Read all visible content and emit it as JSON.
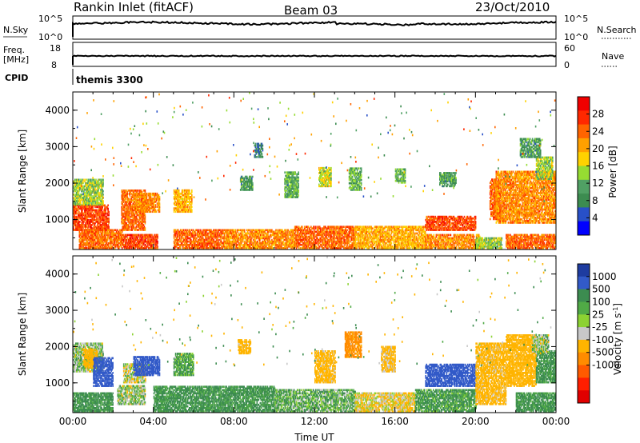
{
  "header": {
    "station": "Rankin Inlet (fitACF)",
    "beam": "Beam 03",
    "date": "23/Oct/2010"
  },
  "top_panels": {
    "nsky_label": "N.Sky",
    "nsky_ticks": [
      "10^5",
      "10^0"
    ],
    "nsearch_label": "N.Search",
    "nsearch_ticks": [
      "10^5",
      "10^0"
    ],
    "freq_label": "Freq.",
    "freq_unit": "[MHz]",
    "freq_ticks": [
      "18",
      "8"
    ],
    "nave_label": "Nave",
    "nave_ticks": [
      "60",
      "0"
    ],
    "cpid_label": "CPID",
    "cpid_value": "themis 3300"
  },
  "colors": {
    "power_scale": [
      "#0000ff",
      "#2850c8",
      "#3c8c50",
      "#50a064",
      "#96dc32",
      "#ffd200",
      "#ffa000",
      "#ff6400",
      "#ff2800",
      "#f00000"
    ],
    "velocity_scale": [
      "#1e3ca0",
      "#325ac8",
      "#3c8c50",
      "#50aa46",
      "#8cd232",
      "#c8c8c8",
      "#ffb400",
      "#ff8c00",
      "#ff5a00",
      "#ff1e00",
      "#e10000"
    ]
  },
  "chart_data": [
    {
      "type": "heatmap",
      "panel": "power",
      "ylabel": "Slant Range [km]",
      "yticks": [
        "1000",
        "2000",
        "3000",
        "4000"
      ],
      "ylim": [
        180,
        4500
      ],
      "xlim": [
        0,
        24
      ],
      "colorbar_label": "Power [dB]",
      "colorbar_ticks": [
        "4",
        "8",
        "12",
        "16",
        "20",
        "24",
        "28"
      ],
      "colorbar_range": [
        0,
        32
      ],
      "regions": [
        {
          "t": [
            0.0,
            1.8
          ],
          "r": [
            700,
            1400
          ],
          "v": 26
        },
        {
          "t": [
            0.0,
            1.5
          ],
          "r": [
            1400,
            2100
          ],
          "v": 14
        },
        {
          "t": [
            0.3,
            2.5
          ],
          "r": [
            200,
            700
          ],
          "v": 24
        },
        {
          "t": [
            2.4,
            3.6
          ],
          "r": [
            700,
            1800
          ],
          "v": 24
        },
        {
          "t": [
            2.5,
            4.2
          ],
          "r": [
            200,
            600
          ],
          "v": 26
        },
        {
          "t": [
            3.0,
            4.3
          ],
          "r": [
            1200,
            1700
          ],
          "v": 22
        },
        {
          "t": [
            5.0,
            5.9
          ],
          "r": [
            1200,
            1800
          ],
          "v": 20
        },
        {
          "t": [
            5.0,
            7.5
          ],
          "r": [
            200,
            700
          ],
          "v": 24
        },
        {
          "t": [
            7.5,
            11.0
          ],
          "r": [
            200,
            700
          ],
          "v": 22
        },
        {
          "t": [
            8.3,
            8.9
          ],
          "r": [
            1800,
            2200
          ],
          "v": 10
        },
        {
          "t": [
            9.0,
            9.4
          ],
          "r": [
            2700,
            3100
          ],
          "v": 8
        },
        {
          "t": [
            10.5,
            11.2
          ],
          "r": [
            1600,
            2300
          ],
          "v": 12
        },
        {
          "t": [
            11.0,
            14.0
          ],
          "r": [
            200,
            800
          ],
          "v": 24
        },
        {
          "t": [
            12.2,
            12.8
          ],
          "r": [
            1900,
            2400
          ],
          "v": 16
        },
        {
          "t": [
            13.7,
            14.3
          ],
          "r": [
            1800,
            2400
          ],
          "v": 12
        },
        {
          "t": [
            14.0,
            17.5
          ],
          "r": [
            200,
            800
          ],
          "v": 20
        },
        {
          "t": [
            16.0,
            16.5
          ],
          "r": [
            2000,
            2400
          ],
          "v": 12
        },
        {
          "t": [
            17.5,
            20.2
          ],
          "r": [
            200,
            600
          ],
          "v": 22
        },
        {
          "t": [
            17.5,
            20.0
          ],
          "r": [
            700,
            1100
          ],
          "v": 26
        },
        {
          "t": [
            18.2,
            19.0
          ],
          "r": [
            1900,
            2300
          ],
          "v": 10
        },
        {
          "t": [
            20.0,
            21.3
          ],
          "r": [
            200,
            500
          ],
          "v": 14
        },
        {
          "t": [
            20.7,
            21.2
          ],
          "r": [
            1000,
            2100
          ],
          "v": 24
        },
        {
          "t": [
            21.0,
            24.0
          ],
          "r": [
            900,
            2300
          ],
          "v": 22
        },
        {
          "t": [
            21.5,
            24.0
          ],
          "r": [
            200,
            600
          ],
          "v": 24
        },
        {
          "t": [
            23.0,
            23.8
          ],
          "r": [
            2100,
            2700
          ],
          "v": 14
        },
        {
          "t": [
            22.2,
            23.2
          ],
          "r": [
            2700,
            3200
          ],
          "v": 10
        }
      ]
    },
    {
      "type": "heatmap",
      "panel": "velocity",
      "xlabel": "Time UT",
      "ylabel": "Slant Range [km]",
      "xticks": [
        "00:00",
        "04:00",
        "08:00",
        "12:00",
        "16:00",
        "20:00",
        "00:00"
      ],
      "yticks": [
        "1000",
        "2000",
        "3000",
        "4000"
      ],
      "ylim": [
        180,
        4500
      ],
      "xlim": [
        0,
        24
      ],
      "colorbar_label": "Velocity [m s^-1]",
      "colorbar_ticks": [
        "1000",
        "500",
        "100",
        "25",
        "-25",
        "-100",
        "-500",
        "-1000"
      ],
      "regions": [
        {
          "t": [
            0.0,
            1.5
          ],
          "r": [
            1300,
            2100
          ],
          "v": 0
        },
        {
          "t": [
            0.5,
            1.2
          ],
          "r": [
            1400,
            1900
          ],
          "v": -300
        },
        {
          "t": [
            1.0,
            2.0
          ],
          "r": [
            900,
            1700
          ],
          "v": 700
        },
        {
          "t": [
            0.0,
            2.0
          ],
          "r": [
            200,
            700
          ],
          "v": 150
        },
        {
          "t": [
            2.2,
            3.6
          ],
          "r": [
            400,
            900
          ],
          "v": 0
        },
        {
          "t": [
            2.5,
            3.6
          ],
          "r": [
            1000,
            1500
          ],
          "v": -60
        },
        {
          "t": [
            3.0,
            4.3
          ],
          "r": [
            1200,
            1700
          ],
          "v": 700
        },
        {
          "t": [
            4.0,
            10.0
          ],
          "r": [
            200,
            900
          ],
          "v": 150
        },
        {
          "t": [
            5.0,
            6.0
          ],
          "r": [
            1200,
            1800
          ],
          "v": 100
        },
        {
          "t": [
            8.2,
            8.8
          ],
          "r": [
            1800,
            2200
          ],
          "v": -200
        },
        {
          "t": [
            10.0,
            14.0
          ],
          "r": [
            200,
            800
          ],
          "v": 60
        },
        {
          "t": [
            12.0,
            13.0
          ],
          "r": [
            1000,
            1900
          ],
          "v": -200
        },
        {
          "t": [
            13.5,
            14.3
          ],
          "r": [
            1700,
            2400
          ],
          "v": -600
        },
        {
          "t": [
            14.0,
            17.0
          ],
          "r": [
            200,
            700
          ],
          "v": -100
        },
        {
          "t": [
            15.3,
            16.0
          ],
          "r": [
            1300,
            2000
          ],
          "v": -150
        },
        {
          "t": [
            17.0,
            20.0
          ],
          "r": [
            200,
            800
          ],
          "v": 120
        },
        {
          "t": [
            17.5,
            20.0
          ],
          "r": [
            900,
            1500
          ],
          "v": 700
        },
        {
          "t": [
            20.0,
            21.5
          ],
          "r": [
            400,
            2100
          ],
          "v": -200
        },
        {
          "t": [
            21.5,
            23.0
          ],
          "r": [
            900,
            2300
          ],
          "v": -300
        },
        {
          "t": [
            22.0,
            24.0
          ],
          "r": [
            200,
            700
          ],
          "v": 150
        },
        {
          "t": [
            23.0,
            24.0
          ],
          "r": [
            1000,
            1900
          ],
          "v": 150
        },
        {
          "t": [
            22.8,
            23.6
          ],
          "r": [
            1800,
            2300
          ],
          "v": 0
        }
      ]
    }
  ]
}
